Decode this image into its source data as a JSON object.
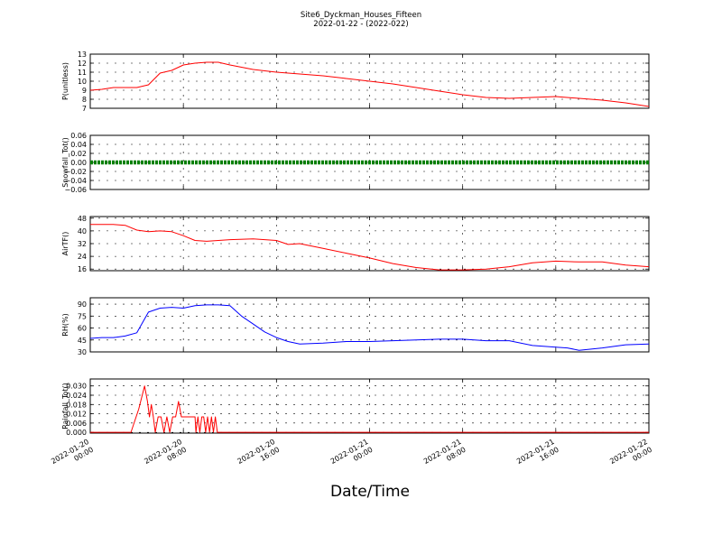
{
  "figure": {
    "title_line1": "Site6_Dyckman_Houses_Fifteen",
    "title_line2": "2022-01-22 - (2022-022)",
    "xlabel": "Date/Time",
    "xticks": [
      {
        "l1": "2022-01-20",
        "l2": "00:00"
      },
      {
        "l1": "2022-01-20",
        "l2": "08:00"
      },
      {
        "l1": "2022-01-20",
        "l2": "16:00"
      },
      {
        "l1": "2022-01-21",
        "l2": "00:00"
      },
      {
        "l1": "2022-01-21",
        "l2": "08:00"
      },
      {
        "l1": "2022-01-21",
        "l2": "16:00"
      },
      {
        "l1": "2022-01-22",
        "l2": "00:00"
      }
    ]
  },
  "chart_data": [
    {
      "type": "line",
      "ylabel": "P(unitless)",
      "ylim": [
        7,
        13
      ],
      "yticks": [
        "7",
        "8",
        "9",
        "10",
        "11",
        "12",
        "13"
      ],
      "grid": true,
      "series": [
        {
          "color": "#ff0000",
          "x": [
            "2022-01-20 00:00",
            "2022-01-20 01:00",
            "2022-01-20 02:00",
            "2022-01-20 03:00",
            "2022-01-20 04:00",
            "2022-01-20 05:00",
            "2022-01-20 06:00",
            "2022-01-20 07:00",
            "2022-01-20 08:00",
            "2022-01-20 09:00",
            "2022-01-20 10:00",
            "2022-01-20 11:00",
            "2022-01-20 12:00",
            "2022-01-20 14:00",
            "2022-01-20 16:00",
            "2022-01-20 18:00",
            "2022-01-20 20:00",
            "2022-01-20 22:00",
            "2022-01-21 00:00",
            "2022-01-21 02:00",
            "2022-01-21 04:00",
            "2022-01-21 06:00",
            "2022-01-21 08:00",
            "2022-01-21 10:00",
            "2022-01-21 12:00",
            "2022-01-21 14:00",
            "2022-01-21 16:00",
            "2022-01-21 18:00",
            "2022-01-21 20:00",
            "2022-01-21 22:00",
            "2022-01-22 00:00"
          ],
          "y": [
            9.0,
            9.1,
            9.3,
            9.3,
            9.3,
            9.6,
            10.9,
            11.2,
            11.8,
            12.0,
            12.1,
            12.1,
            11.8,
            11.3,
            11.0,
            10.8,
            10.6,
            10.3,
            10.0,
            9.7,
            9.3,
            8.9,
            8.5,
            8.2,
            8.1,
            8.2,
            8.3,
            8.1,
            7.9,
            7.6,
            7.2
          ]
        }
      ]
    },
    {
      "type": "scatter",
      "ylabel": "Snowfall_Tot()",
      "ylim": [
        -0.06,
        0.06
      ],
      "yticks": [
        "−0.06",
        "−0.04",
        "−0.02",
        "0.00",
        "0.02",
        "0.04",
        "0.06"
      ],
      "grid": true,
      "series": [
        {
          "color": "#008000",
          "x": [
            "2022-01-20 00:00",
            "2022-01-22 00:00"
          ],
          "y": [
            0.0,
            0.0
          ],
          "marker": "dense points along the full range"
        }
      ]
    },
    {
      "type": "line",
      "ylabel": "AirTF()",
      "ylim": [
        15,
        49
      ],
      "yticks": [
        "16",
        "24",
        "32",
        "40",
        "48"
      ],
      "grid": true,
      "series": [
        {
          "color": "#ff0000",
          "x": [
            "2022-01-20 00:00",
            "2022-01-20 02:00",
            "2022-01-20 03:00",
            "2022-01-20 04:00",
            "2022-01-20 05:00",
            "2022-01-20 06:00",
            "2022-01-20 07:00",
            "2022-01-20 08:00",
            "2022-01-20 09:00",
            "2022-01-20 10:00",
            "2022-01-20 12:00",
            "2022-01-20 14:00",
            "2022-01-20 16:00",
            "2022-01-20 17:00",
            "2022-01-20 18:00",
            "2022-01-20 20:00",
            "2022-01-20 22:00",
            "2022-01-21 00:00",
            "2022-01-21 02:00",
            "2022-01-21 04:00",
            "2022-01-21 06:00",
            "2022-01-21 08:00",
            "2022-01-21 10:00",
            "2022-01-21 12:00",
            "2022-01-21 14:00",
            "2022-01-21 16:00",
            "2022-01-21 18:00",
            "2022-01-21 20:00",
            "2022-01-21 22:00",
            "2022-01-22 00:00"
          ],
          "y": [
            44,
            44,
            43.5,
            40.5,
            39.5,
            40,
            39.5,
            37,
            34,
            33.5,
            34.5,
            35,
            34,
            31.5,
            32,
            29,
            26,
            23,
            19.5,
            17,
            15.5,
            15.5,
            16,
            17.5,
            20,
            21,
            20.5,
            20.5,
            18.5,
            17.5
          ]
        }
      ]
    },
    {
      "type": "line",
      "ylabel": "RH(%)",
      "ylim": [
        30,
        98
      ],
      "yticks": [
        "30",
        "45",
        "60",
        "75",
        "90"
      ],
      "grid": true,
      "series": [
        {
          "color": "#0000ff",
          "x": [
            "2022-01-20 00:00",
            "2022-01-20 01:00",
            "2022-01-20 02:00",
            "2022-01-20 03:00",
            "2022-01-20 04:00",
            "2022-01-20 05:00",
            "2022-01-20 06:00",
            "2022-01-20 07:00",
            "2022-01-20 08:00",
            "2022-01-20 09:00",
            "2022-01-20 10:00",
            "2022-01-20 11:00",
            "2022-01-20 12:00",
            "2022-01-20 13:00",
            "2022-01-20 14:00",
            "2022-01-20 15:00",
            "2022-01-20 16:00",
            "2022-01-20 17:00",
            "2022-01-20 18:00",
            "2022-01-20 20:00",
            "2022-01-20 22:00",
            "2022-01-21 00:00",
            "2022-01-21 02:00",
            "2022-01-21 04:00",
            "2022-01-21 06:00",
            "2022-01-21 08:00",
            "2022-01-21 10:00",
            "2022-01-21 12:00",
            "2022-01-21 14:00",
            "2022-01-21 16:00",
            "2022-01-21 17:00",
            "2022-01-21 18:00",
            "2022-01-21 20:00",
            "2022-01-21 22:00",
            "2022-01-22 00:00"
          ],
          "y": [
            47,
            48,
            48,
            50,
            54,
            80,
            85,
            86,
            85,
            88,
            89,
            89,
            88,
            75,
            65,
            55,
            48,
            43,
            40,
            41,
            43,
            43,
            44,
            45,
            46,
            46,
            44,
            44,
            38,
            36,
            35,
            32,
            35,
            39,
            40
          ]
        }
      ]
    },
    {
      "type": "line",
      "ylabel": "Rainfall_Tot()",
      "ylim": [
        -0.0005,
        0.0345
      ],
      "yticks": [
        "0.000",
        "0.006",
        "0.012",
        "0.018",
        "0.024",
        "0.030"
      ],
      "grid": true,
      "series": [
        {
          "color": "#ff0000",
          "x": [
            "2022-01-20 00:00",
            "2022-01-20 03:30",
            "2022-01-20 04:10",
            "2022-01-20 04:40",
            "2022-01-20 04:55",
            "2022-01-20 05:05",
            "2022-01-20 05:15",
            "2022-01-20 05:25",
            "2022-01-20 05:35",
            "2022-01-20 05:50",
            "2022-01-20 06:05",
            "2022-01-20 06:20",
            "2022-01-20 06:35",
            "2022-01-20 06:50",
            "2022-01-20 07:05",
            "2022-01-20 07:20",
            "2022-01-20 07:35",
            "2022-01-20 07:50",
            "2022-01-20 08:05",
            "2022-01-20 08:15",
            "2022-01-20 08:35",
            "2022-01-20 09:00",
            "2022-01-20 09:05",
            "2022-01-20 09:15",
            "2022-01-20 09:25",
            "2022-01-20 09:35",
            "2022-01-20 09:45",
            "2022-01-20 09:55",
            "2022-01-20 10:05",
            "2022-01-20 10:15",
            "2022-01-20 10:25",
            "2022-01-20 10:35",
            "2022-01-20 10:45",
            "2022-01-20 10:55",
            "2022-01-20 11:05",
            "2022-01-22 00:00"
          ],
          "y": [
            0,
            0,
            0.015,
            0.03,
            0.02,
            0.01,
            0.018,
            0.01,
            0,
            0.01,
            0.01,
            0,
            0.01,
            0,
            0.01,
            0.01,
            0.02,
            0.01,
            0.01,
            0.01,
            0.01,
            0.01,
            0,
            0.01,
            0,
            0.01,
            0.01,
            0,
            0.01,
            0,
            0.01,
            0,
            0.01,
            0,
            0,
            0
          ]
        }
      ]
    }
  ]
}
